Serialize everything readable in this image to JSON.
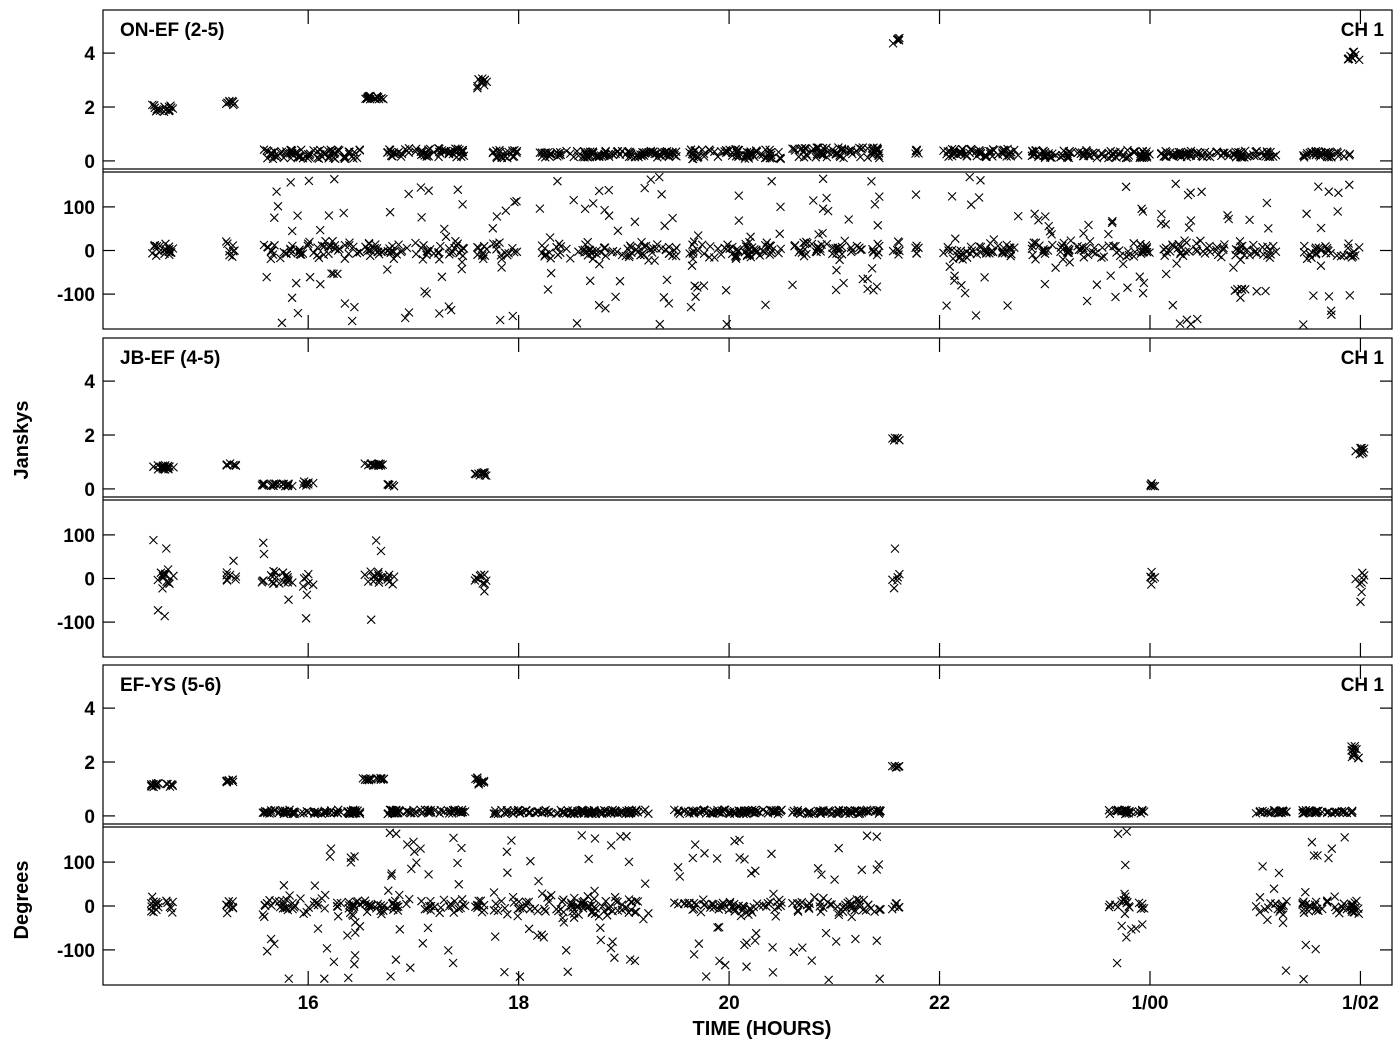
{
  "chart_data": {
    "type": "scatter",
    "marker": "x",
    "xlabel": "TIME (HOURS)",
    "ylabels": {
      "amplitude": "Janskys",
      "phase": "Degrees"
    },
    "x_range_hours": [
      14.05,
      26.3
    ],
    "x_ticks": [
      {
        "value": 16,
        "label": "16"
      },
      {
        "value": 18,
        "label": "18"
      },
      {
        "value": 20,
        "label": "20"
      },
      {
        "value": 22,
        "label": "22"
      },
      {
        "value": 24,
        "label": "1/00"
      },
      {
        "value": 26,
        "label": "1/02"
      }
    ],
    "amp_range": [
      -0.3,
      5.6
    ],
    "amp_ticks": [
      0,
      2,
      4
    ],
    "phase_range": [
      -180,
      180
    ],
    "phase_ticks": [
      -100,
      0,
      100
    ],
    "panels": [
      {
        "title": "ON-EF (2-5)",
        "channel": "CH 1",
        "clusters": [
          {
            "t0": 14.5,
            "t1": 14.72,
            "amp": 1.95,
            "spread": 0.15
          },
          {
            "t0": 15.22,
            "t1": 15.32,
            "amp": 2.15,
            "spread": 0.1
          },
          {
            "t0": 16.52,
            "t1": 16.72,
            "amp": 2.35,
            "spread": 0.06
          },
          {
            "t0": 17.58,
            "t1": 17.7,
            "amp": 2.85,
            "spread": 0.25
          },
          {
            "t0": 21.55,
            "t1": 21.62,
            "amp": 4.5,
            "spread": 0.2
          },
          {
            "t0": 25.88,
            "t1": 26.0,
            "amp": 3.9,
            "spread": 0.18
          },
          {
            "t0": 15.55,
            "t1": 16.5,
            "amp": 0.25,
            "spread": 0.18
          },
          {
            "t0": 16.75,
            "t1": 17.5,
            "amp": 0.3,
            "spread": 0.18
          },
          {
            "t0": 17.75,
            "t1": 18.0,
            "amp": 0.25,
            "spread": 0.15
          },
          {
            "t0": 18.2,
            "t1": 19.5,
            "amp": 0.25,
            "spread": 0.12
          },
          {
            "t0": 19.6,
            "t1": 20.5,
            "amp": 0.25,
            "spread": 0.18
          },
          {
            "t0": 20.6,
            "t1": 21.45,
            "amp": 0.3,
            "spread": 0.2
          },
          {
            "t0": 21.75,
            "t1": 21.8,
            "amp": 0.35,
            "spread": 0.1
          },
          {
            "t0": 22.0,
            "t1": 22.75,
            "amp": 0.3,
            "spread": 0.15
          },
          {
            "t0": 22.85,
            "t1": 24.0,
            "amp": 0.25,
            "spread": 0.15
          },
          {
            "t0": 24.1,
            "t1": 25.2,
            "amp": 0.25,
            "spread": 0.12
          },
          {
            "t0": 25.45,
            "t1": 25.9,
            "amp": 0.25,
            "spread": 0.12
          }
        ],
        "phase_scatter": "wide",
        "phase_gaps": []
      },
      {
        "title": "JB-EF (4-5)",
        "channel": "CH 1",
        "clusters": [
          {
            "t0": 14.5,
            "t1": 14.72,
            "amp": 0.8,
            "spread": 0.08
          },
          {
            "t0": 15.22,
            "t1": 15.32,
            "amp": 0.9,
            "spread": 0.05
          },
          {
            "t0": 15.55,
            "t1": 15.85,
            "amp": 0.15,
            "spread": 0.05
          },
          {
            "t0": 15.95,
            "t1": 16.05,
            "amp": 0.2,
            "spread": 0.08
          },
          {
            "t0": 16.52,
            "t1": 16.72,
            "amp": 0.9,
            "spread": 0.05
          },
          {
            "t0": 16.75,
            "t1": 16.82,
            "amp": 0.15,
            "spread": 0.05
          },
          {
            "t0": 17.58,
            "t1": 17.7,
            "amp": 0.55,
            "spread": 0.1
          },
          {
            "t0": 21.55,
            "t1": 21.62,
            "amp": 1.85,
            "spread": 0.05
          },
          {
            "t0": 24.0,
            "t1": 24.05,
            "amp": 0.15,
            "spread": 0.1
          },
          {
            "t0": 25.95,
            "t1": 26.05,
            "amp": 1.4,
            "spread": 0.12
          }
        ],
        "phase_scatter": "sparse",
        "phase_gaps": []
      },
      {
        "title": "EF-YS (5-6)",
        "channel": "CH 1",
        "clusters": [
          {
            "t0": 14.5,
            "t1": 14.72,
            "amp": 1.15,
            "spread": 0.1
          },
          {
            "t0": 15.22,
            "t1": 15.32,
            "amp": 1.3,
            "spread": 0.06
          },
          {
            "t0": 16.52,
            "t1": 16.72,
            "amp": 1.35,
            "spread": 0.05
          },
          {
            "t0": 17.58,
            "t1": 17.7,
            "amp": 1.3,
            "spread": 0.2
          },
          {
            "t0": 21.55,
            "t1": 21.62,
            "amp": 1.85,
            "spread": 0.05
          },
          {
            "t0": 25.9,
            "t1": 26.05,
            "amp": 2.35,
            "spread": 0.25
          },
          {
            "t0": 15.55,
            "t1": 16.5,
            "amp": 0.15,
            "spread": 0.08
          },
          {
            "t0": 16.75,
            "t1": 17.5,
            "amp": 0.15,
            "spread": 0.08
          },
          {
            "t0": 17.75,
            "t1": 19.25,
            "amp": 0.15,
            "spread": 0.08
          },
          {
            "t0": 19.45,
            "t1": 20.5,
            "amp": 0.15,
            "spread": 0.08
          },
          {
            "t0": 20.6,
            "t1": 21.45,
            "amp": 0.15,
            "spread": 0.08
          },
          {
            "t0": 23.6,
            "t1": 23.95,
            "amp": 0.15,
            "spread": 0.08
          },
          {
            "t0": 25.0,
            "t1": 25.3,
            "amp": 0.15,
            "spread": 0.06
          },
          {
            "t0": 25.45,
            "t1": 25.95,
            "amp": 0.15,
            "spread": 0.06
          }
        ],
        "phase_scatter": "wide",
        "phase_gaps": [
          [
            21.9,
            23.55
          ],
          [
            24.1,
            24.95
          ]
        ]
      }
    ]
  }
}
